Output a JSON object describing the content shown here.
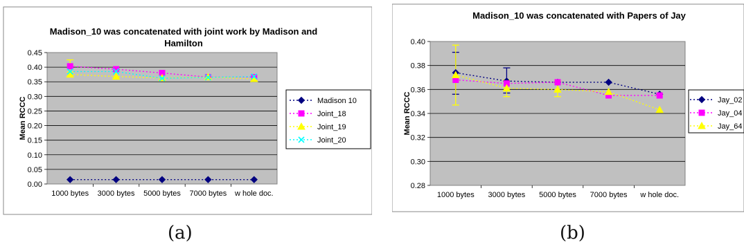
{
  "chart_data": [
    {
      "type": "line",
      "title_lines": [
        "Madison_10 was concatenated with joint work by Madison and",
        "Hamilton"
      ],
      "ylabel": "Mean RCCC",
      "xlabel": "",
      "categories": [
        "1000 bytes",
        "3000 bytes",
        "5000 bytes",
        "7000 bytes",
        "w hole doc."
      ],
      "ylim": [
        0,
        0.45
      ],
      "yticks": [
        "0.00",
        "0.05",
        "0.10",
        "0.15",
        "0.20",
        "0.25",
        "0.30",
        "0.35",
        "0.40",
        "0.45"
      ],
      "grid": true,
      "legend_position": "right",
      "series": [
        {
          "name": "Madison 10",
          "color": "#000080",
          "marker": "diamond",
          "values": [
            0.015,
            0.015,
            0.015,
            0.015,
            0.015
          ]
        },
        {
          "name": "Joint_18",
          "color": "#ff00ff",
          "marker": "square",
          "values": [
            0.403,
            0.393,
            0.38,
            0.366,
            0.366
          ]
        },
        {
          "name": "Joint_19",
          "color": "#ffff00",
          "marker": "triangle",
          "values": [
            0.375,
            0.368,
            0.363,
            0.366,
            0.36
          ]
        },
        {
          "name": "Joint_20",
          "color": "#00ffff",
          "marker": "x",
          "values": [
            0.385,
            0.385,
            0.362,
            0.365,
            0.368
          ]
        }
      ],
      "error_bars": [
        {
          "series": 0,
          "index": 0,
          "low": 0.383,
          "high": 0.425,
          "color": "#ffff00"
        }
      ],
      "caption": "(a)"
    },
    {
      "type": "line",
      "title_lines": [
        "Madison_10 was concatenated with Papers of Jay"
      ],
      "ylabel": "Mean RCCC",
      "xlabel": "",
      "categories": [
        "1000 bytes",
        "3000 bytes",
        "5000 bytes",
        "7000 bytes",
        "w hole doc."
      ],
      "ylim": [
        0.28,
        0.4
      ],
      "yticks": [
        "0.28",
        "0.30",
        "0.32",
        "0.34",
        "0.36",
        "0.38",
        "0.40"
      ],
      "grid": true,
      "legend_position": "right",
      "series": [
        {
          "name": "Jay_02",
          "color": "#000080",
          "marker": "diamond",
          "values": [
            0.374,
            0.367,
            0.366,
            0.366,
            0.356
          ]
        },
        {
          "name": "Jay_04",
          "color": "#ff00ff",
          "marker": "square",
          "values": [
            0.368,
            0.365,
            0.366,
            0.355,
            0.355
          ]
        },
        {
          "name": "Jay_64",
          "color": "#ffff00",
          "marker": "triangle",
          "values": [
            0.372,
            0.361,
            0.36,
            0.358,
            0.343
          ]
        }
      ],
      "error_bars": [
        {
          "index": 0,
          "low": 0.356,
          "high": 0.391,
          "color": "#000080"
        },
        {
          "index": 0,
          "low": 0.347,
          "high": 0.397,
          "color": "#ffff00"
        },
        {
          "index": 1,
          "low": 0.357,
          "high": 0.378,
          "color": "#000080"
        },
        {
          "index": 1,
          "low": 0.354,
          "high": 0.368,
          "color": "#ffff00"
        },
        {
          "index": 2,
          "low": 0.354,
          "high": 0.367,
          "color": "#ffff00"
        }
      ],
      "caption": "(b)"
    }
  ]
}
